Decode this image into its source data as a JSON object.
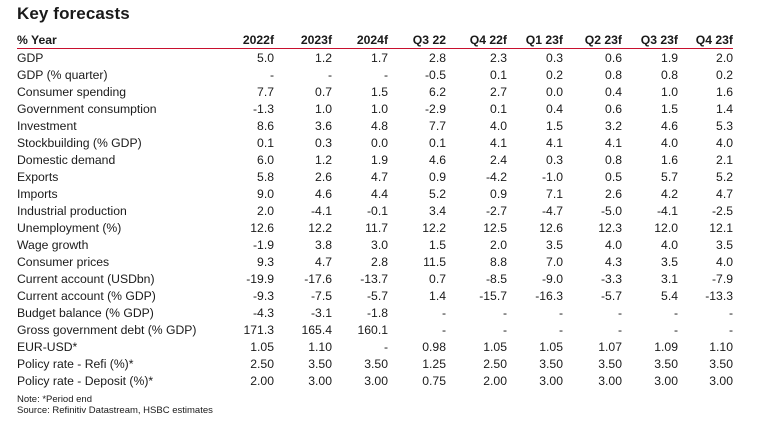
{
  "title": "Key forecasts",
  "columns": [
    "% Year",
    "2022f",
    "2023f",
    "2024f",
    "Q3 22",
    "Q4 22f",
    "Q1 23f",
    "Q2 23f",
    "Q3 23f",
    "Q4 23f"
  ],
  "rows": [
    {
      "label": "GDP",
      "values": [
        "5.0",
        "1.2",
        "1.7",
        "2.8",
        "2.3",
        "0.3",
        "0.6",
        "1.9",
        "2.0"
      ]
    },
    {
      "label": "GDP (% quarter)",
      "values": [
        "-",
        "-",
        "-",
        "-0.5",
        "0.1",
        "0.2",
        "0.8",
        "0.8",
        "0.2"
      ]
    },
    {
      "label": "Consumer spending",
      "values": [
        "7.7",
        "0.7",
        "1.5",
        "6.2",
        "2.7",
        "0.0",
        "0.4",
        "1.0",
        "1.6"
      ]
    },
    {
      "label": "Government consumption",
      "values": [
        "-1.3",
        "1.0",
        "1.0",
        "-2.9",
        "0.1",
        "0.4",
        "0.6",
        "1.5",
        "1.4"
      ]
    },
    {
      "label": "Investment",
      "values": [
        "8.6",
        "3.6",
        "4.8",
        "7.7",
        "4.0",
        "1.5",
        "3.2",
        "4.6",
        "5.3"
      ]
    },
    {
      "label": "Stockbuilding (% GDP)",
      "values": [
        "0.1",
        "0.3",
        "0.0",
        "0.1",
        "4.1",
        "4.1",
        "4.1",
        "4.0",
        "4.0"
      ]
    },
    {
      "label": "Domestic demand",
      "values": [
        "6.0",
        "1.2",
        "1.9",
        "4.6",
        "2.4",
        "0.3",
        "0.8",
        "1.6",
        "2.1"
      ]
    },
    {
      "label": "Exports",
      "values": [
        "5.8",
        "2.6",
        "4.7",
        "0.9",
        "-4.2",
        "-1.0",
        "0.5",
        "5.7",
        "5.2"
      ]
    },
    {
      "label": "Imports",
      "values": [
        "9.0",
        "4.6",
        "4.4",
        "5.2",
        "0.9",
        "7.1",
        "2.6",
        "4.2",
        "4.7"
      ]
    },
    {
      "label": "Industrial production",
      "values": [
        "2.0",
        "-4.1",
        "-0.1",
        "3.4",
        "-2.7",
        "-4.7",
        "-5.0",
        "-4.1",
        "-2.5"
      ]
    },
    {
      "label": "Unemployment (%)",
      "values": [
        "12.6",
        "12.2",
        "11.7",
        "12.2",
        "12.5",
        "12.6",
        "12.3",
        "12.0",
        "12.1"
      ]
    },
    {
      "label": "Wage growth",
      "values": [
        "-1.9",
        "3.8",
        "3.0",
        "1.5",
        "2.0",
        "3.5",
        "4.0",
        "4.0",
        "3.5"
      ]
    },
    {
      "label": "Consumer prices",
      "values": [
        "9.3",
        "4.7",
        "2.8",
        "11.5",
        "8.8",
        "7.0",
        "4.3",
        "3.5",
        "4.0"
      ]
    },
    {
      "label": "Current account (USDbn)",
      "values": [
        "-19.9",
        "-17.6",
        "-13.7",
        "0.7",
        "-8.5",
        "-9.0",
        "-3.3",
        "3.1",
        "-7.9"
      ]
    },
    {
      "label": "Current account (% GDP)",
      "values": [
        "-9.3",
        "-7.5",
        "-5.7",
        "1.4",
        "-15.7",
        "-16.3",
        "-5.7",
        "5.4",
        "-13.3"
      ]
    },
    {
      "label": "Budget balance (% GDP)",
      "values": [
        "-4.3",
        "-3.1",
        "-1.8",
        "-",
        "-",
        "-",
        "-",
        "-",
        "-"
      ]
    },
    {
      "label": "Gross government debt (% GDP)",
      "values": [
        "171.3",
        "165.4",
        "160.1",
        "-",
        "-",
        "-",
        "-",
        "-",
        "-"
      ]
    },
    {
      "label": "EUR-USD*",
      "values": [
        "1.05",
        "1.10",
        "-",
        "0.98",
        "1.05",
        "1.05",
        "1.07",
        "1.09",
        "1.10"
      ]
    },
    {
      "label": "Policy rate - Refi (%)*",
      "values": [
        "2.50",
        "3.50",
        "3.50",
        "1.25",
        "2.50",
        "3.50",
        "3.50",
        "3.50",
        "3.50"
      ]
    },
    {
      "label": "Policy rate - Deposit (%)*",
      "values": [
        "2.00",
        "3.00",
        "3.00",
        "0.75",
        "2.00",
        "3.00",
        "3.00",
        "3.00",
        "3.00"
      ]
    }
  ],
  "notes": {
    "note": "Note: *Period end",
    "source": "Source: Refinitiv Datastream, HSBC estimates"
  },
  "colors": {
    "header_rule": "#c8102e",
    "text": "#1a1a1a",
    "background": "#ffffff"
  }
}
